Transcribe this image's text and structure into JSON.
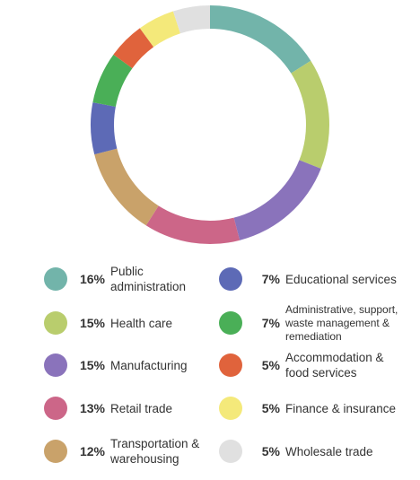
{
  "chart_data": {
    "type": "pie",
    "donut": true,
    "title": "",
    "legend_position": "bottom",
    "slices": [
      {
        "label": "Public\nadministration",
        "value": 16,
        "pct_label": "16%",
        "color": "#72b4aa"
      },
      {
        "label": "Health care",
        "value": 15,
        "pct_label": "15%",
        "color": "#b9cd6d"
      },
      {
        "label": "Manufacturing",
        "value": 15,
        "pct_label": "15%",
        "color": "#8a73bb"
      },
      {
        "label": "Retail trade",
        "value": 13,
        "pct_label": "13%",
        "color": "#cc6688"
      },
      {
        "label": "Transportation &\nwarehousing",
        "value": 12,
        "pct_label": "12%",
        "color": "#c9a26a"
      },
      {
        "label": "Educational services",
        "value": 7,
        "pct_label": "7%",
        "color": "#5d6ab6"
      },
      {
        "label": "Administrative, support,\nwaste management &\nremediation",
        "value": 7,
        "pct_label": "7%",
        "color": "#4aaf57"
      },
      {
        "label": "Accommodation &\nfood services",
        "value": 5,
        "pct_label": "5%",
        "color": "#e0633c"
      },
      {
        "label": "Finance & insurance",
        "value": 5,
        "pct_label": "5%",
        "color": "#f4e97a"
      },
      {
        "label": "Wholesale trade",
        "value": 5,
        "pct_label": "5%",
        "color": "#e0e0e0"
      }
    ]
  }
}
